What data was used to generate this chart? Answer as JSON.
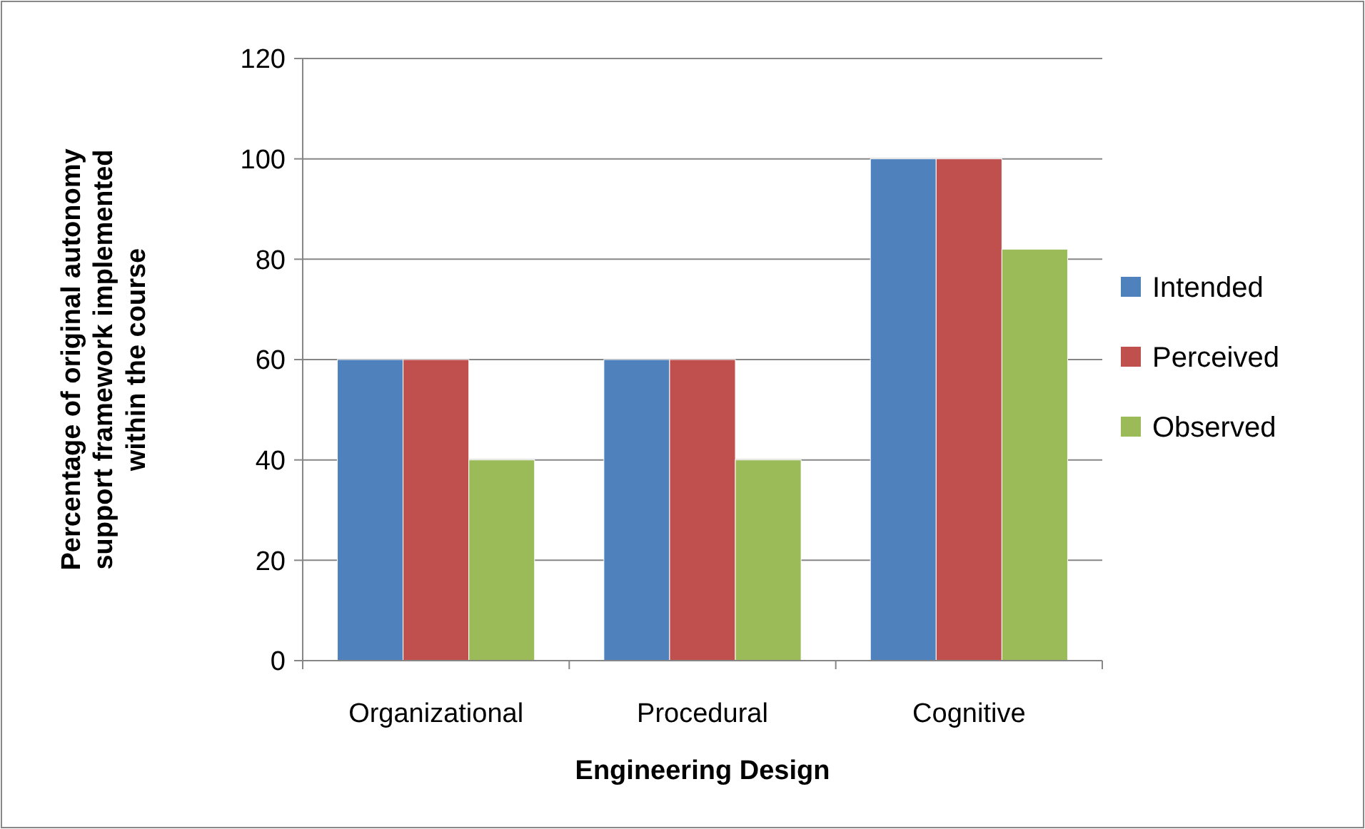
{
  "chart_data": {
    "type": "bar",
    "xlabel": "Engineering Design",
    "ylabel": "Percentage of original autonomy\nsupport framework implemented\nwithin the course",
    "categories": [
      "Organizational",
      "Procedural",
      "Cognitive"
    ],
    "series": [
      {
        "name": "Intended",
        "color": "#4f81bd",
        "values": [
          60,
          60,
          100
        ]
      },
      {
        "name": "Perceived",
        "color": "#c0504d",
        "values": [
          60,
          60,
          100
        ]
      },
      {
        "name": "Observed",
        "color": "#9bbb59",
        "values": [
          40,
          40,
          82
        ]
      }
    ],
    "ylim": [
      0,
      120
    ],
    "yticks": [
      0,
      20,
      40,
      60,
      80,
      100,
      120
    ],
    "grid": "y",
    "legend": "right"
  }
}
